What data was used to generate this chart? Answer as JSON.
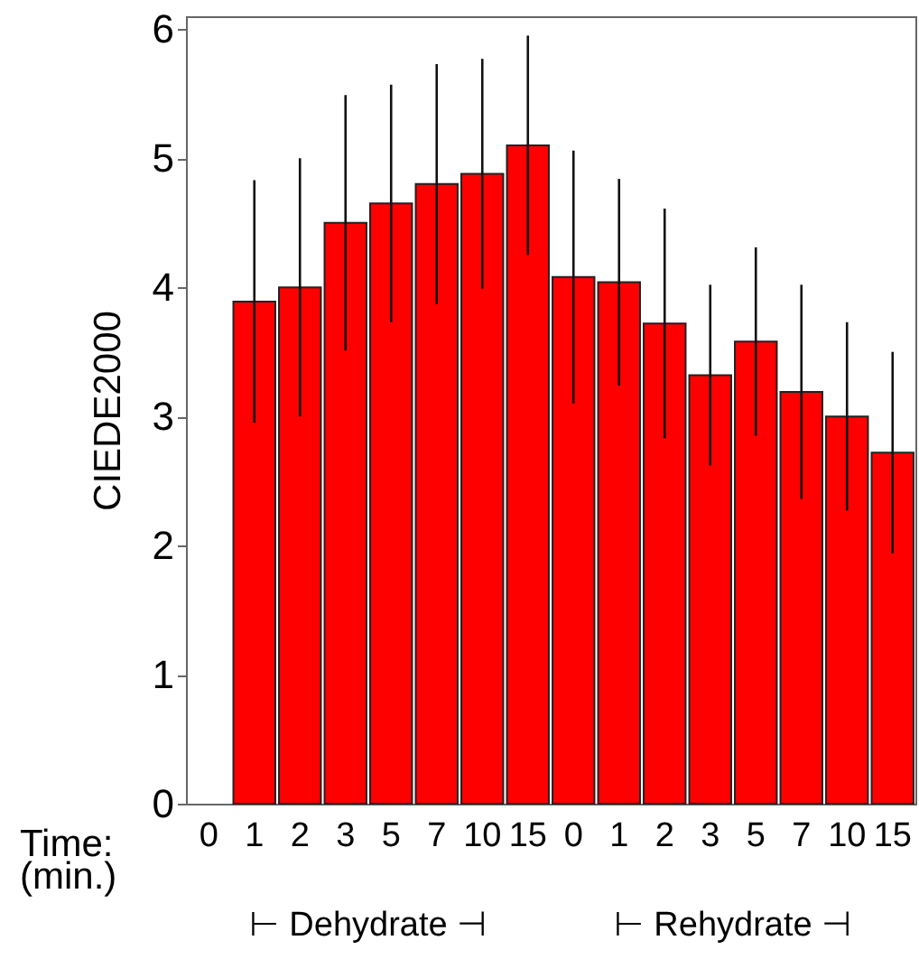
{
  "chart_data": {
    "type": "bar",
    "ylabel": "CIEDE2000",
    "xlabel": "Time: (min.)",
    "categories": [
      "0",
      "1",
      "2",
      "3",
      "5",
      "7",
      "10",
      "15",
      "0",
      "1",
      "2",
      "3",
      "5",
      "7",
      "10",
      "15"
    ],
    "values": [
      null,
      3.89,
      4.0,
      4.5,
      4.65,
      4.8,
      4.88,
      5.1,
      4.08,
      4.04,
      3.72,
      3.32,
      3.58,
      3.19,
      3.0,
      2.72
    ],
    "errors": [
      null,
      0.94,
      1.0,
      0.99,
      0.92,
      0.93,
      0.89,
      0.85,
      0.98,
      0.8,
      0.89,
      0.7,
      0.73,
      0.83,
      0.73,
      0.78
    ],
    "color": "#ff0000",
    "ylim": [
      0,
      6.1
    ],
    "yticks": [
      0,
      1,
      2,
      3,
      4,
      5,
      6
    ],
    "grid": false,
    "annotations": [
      "⊢ Dehydrate ⊣",
      "⊢ Rehydrate ⊣"
    ]
  }
}
